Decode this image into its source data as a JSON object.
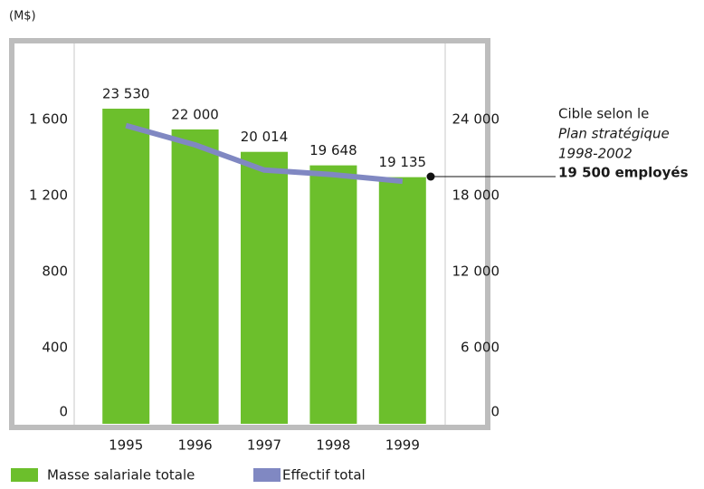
{
  "chart_data": {
    "type": "bar-line",
    "unit_label": "(M$)",
    "categories": [
      "1995",
      "1996",
      "1997",
      "1998",
      "1999"
    ],
    "series": [
      {
        "name": "Masse salariale totale",
        "color": "#6cbf2c",
        "type": "bar",
        "values": [
          1657,
          1548,
          1430,
          1359,
          1297
        ]
      },
      {
        "name": "Effectif total",
        "color": "#8088c2",
        "type": "line",
        "axis": "y2",
        "values": [
          23530,
          22000,
          20014,
          19648,
          19135
        ],
        "value_labels": [
          "23 530",
          "22 000",
          "20 014",
          "19 648",
          "19 135"
        ]
      }
    ],
    "ylim": [
      0,
      2000
    ],
    "yticks": [
      0,
      400,
      800,
      {
        "value": 1200,
        "label": "1 200"
      },
      {
        "value": 1600,
        "label": "1 600"
      }
    ],
    "y2lim": [
      0,
      30000
    ],
    "y2ticks": [
      0,
      {
        "value": 6000,
        "label": "6 000"
      },
      {
        "value": 12000,
        "label": "12 000"
      },
      {
        "value": 18000,
        "label": "18 000"
      },
      {
        "value": 24000,
        "label": "24 000"
      }
    ],
    "annotation": {
      "lines": [
        "Cible selon le",
        "Plan stratégique",
        "1998-2002",
        "19 500 employés"
      ],
      "value": 19500
    },
    "legend": "bottom-left"
  }
}
